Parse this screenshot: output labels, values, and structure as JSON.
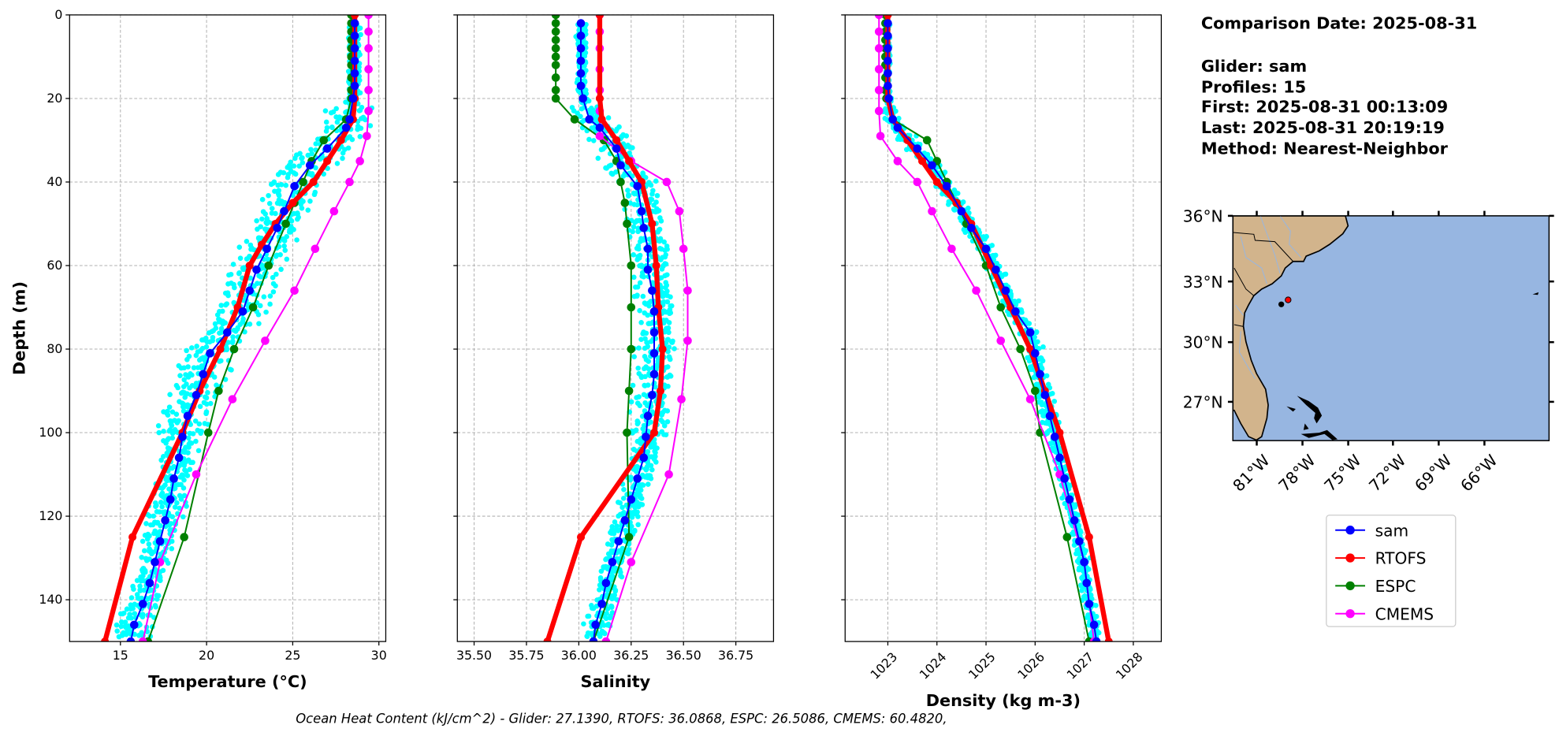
{
  "info": {
    "comparison_date": "Comparison Date: 2025-08-31",
    "glider": "Glider: sam",
    "profiles": "Profiles: 15",
    "first": "First: 2025-08-31 00:13:09",
    "last": "Last: 2025-08-31 20:19:19",
    "method": "Method: Nearest-Neighbor"
  },
  "footer": "Ocean Heat Content (kJ/cm^2) - Glider: 27.1390,  RTOFS: 36.0868,  ESPC: 26.5086,  CMEMS: 60.4820,",
  "colors": {
    "sam": "#0000ff",
    "RTOFS": "#ff0000",
    "ESPC": "#008000",
    "CMEMS": "#ff00ff",
    "glider_obs": "#00ffff",
    "land": "#d2b48c",
    "ocean": "#97b6e1"
  },
  "legend": [
    "sam",
    "RTOFS",
    "ESPC",
    "CMEMS"
  ],
  "chart_data": [
    {
      "type": "line",
      "xlabel": "Temperature (°C)",
      "ylabel": "Depth (m)",
      "xlim": [
        12.05,
        30.4
      ],
      "ylim": [
        150,
        0
      ],
      "xticks": [
        "15",
        "20",
        "25",
        "30"
      ],
      "yticks": [
        "0",
        "20",
        "40",
        "60",
        "80",
        "100",
        "120",
        "140"
      ],
      "grid": true,
      "series": [
        {
          "name": "sam",
          "depth": [
            2,
            5,
            8,
            11,
            14,
            17,
            20,
            25,
            27,
            32,
            36,
            41,
            47,
            51,
            56,
            61,
            66,
            71,
            76,
            81,
            86,
            91,
            96,
            101,
            106,
            111,
            116,
            121,
            126,
            131,
            136,
            141,
            146,
            150
          ],
          "values": [
            28.6,
            28.6,
            28.6,
            28.6,
            28.6,
            28.6,
            28.5,
            28.3,
            28.1,
            27.0,
            26.0,
            25.1,
            24.5,
            24.1,
            23.5,
            22.9,
            22.5,
            22.1,
            21.2,
            20.2,
            19.8,
            19.4,
            18.9,
            18.6,
            18.4,
            18.1,
            17.9,
            17.6,
            17.3,
            17.0,
            16.7,
            16.3,
            15.8,
            15.6
          ]
        },
        {
          "name": "RTOFS",
          "depth": [
            0,
            20,
            25,
            30,
            35,
            40,
            45,
            50,
            55,
            60,
            70,
            80,
            90,
            100,
            125,
            150
          ],
          "values": [
            28.6,
            28.6,
            28.5,
            27.8,
            27.0,
            26.2,
            25.0,
            24.0,
            23.2,
            22.5,
            21.8,
            20.8,
            19.6,
            18.6,
            15.7,
            14.1
          ]
        },
        {
          "name": "ESPC",
          "depth": [
            0,
            2,
            4,
            6,
            8,
            10,
            12,
            15,
            18,
            20,
            25,
            30,
            35,
            40,
            45,
            50,
            60,
            70,
            80,
            90,
            100,
            125,
            150
          ],
          "values": [
            28.4,
            28.4,
            28.4,
            28.4,
            28.4,
            28.4,
            28.4,
            28.4,
            28.4,
            28.4,
            28.1,
            26.8,
            26.1,
            25.6,
            25.1,
            24.6,
            23.6,
            22.7,
            21.6,
            20.7,
            20.1,
            18.7,
            16.6
          ]
        },
        {
          "name": "CMEMS",
          "depth": [
            0,
            4,
            8,
            13,
            18,
            23,
            29,
            35,
            40,
            47,
            56,
            66,
            78,
            92,
            110,
            131,
            150
          ],
          "values": [
            29.4,
            29.4,
            29.4,
            29.4,
            29.4,
            29.4,
            29.3,
            28.9,
            28.3,
            27.4,
            26.3,
            25.1,
            23.4,
            21.5,
            19.4,
            17.3,
            16.3
          ]
        }
      ]
    },
    {
      "type": "line",
      "xlabel": "Salinity",
      "xlim": [
        35.42,
        36.93
      ],
      "ylim": [
        150,
        0
      ],
      "xticks": [
        "35.50",
        "35.75",
        "36.00",
        "36.25",
        "36.50",
        "36.75"
      ],
      "grid": true,
      "series": [
        {
          "name": "sam",
          "depth": [
            2,
            5,
            8,
            11,
            14,
            17,
            20,
            25,
            27,
            32,
            36,
            41,
            47,
            51,
            56,
            61,
            66,
            71,
            76,
            81,
            86,
            91,
            96,
            101,
            106,
            111,
            116,
            121,
            126,
            131,
            136,
            141,
            146,
            150
          ],
          "values": [
            36.01,
            36.01,
            36.01,
            36.01,
            36.01,
            36.01,
            36.02,
            36.05,
            36.1,
            36.18,
            36.2,
            36.28,
            36.3,
            36.31,
            36.33,
            36.33,
            36.35,
            36.36,
            36.36,
            36.36,
            36.36,
            36.35,
            36.33,
            36.32,
            36.31,
            36.28,
            36.25,
            36.22,
            36.19,
            36.16,
            36.13,
            36.11,
            36.08,
            36.07
          ]
        },
        {
          "name": "RTOFS",
          "depth": [
            0,
            20,
            25,
            30,
            35,
            40,
            50,
            60,
            70,
            80,
            90,
            100,
            125,
            150
          ],
          "values": [
            36.1,
            36.1,
            36.11,
            36.18,
            36.24,
            36.3,
            36.35,
            36.37,
            36.38,
            36.4,
            36.39,
            36.36,
            36.01,
            35.85
          ]
        },
        {
          "name": "ESPC",
          "depth": [
            0,
            2,
            4,
            6,
            8,
            10,
            12,
            15,
            18,
            20,
            25,
            30,
            35,
            40,
            45,
            50,
            60,
            70,
            80,
            90,
            100,
            125,
            150
          ],
          "values": [
            35.89,
            35.89,
            35.89,
            35.89,
            35.89,
            35.89,
            35.89,
            35.89,
            35.89,
            35.89,
            35.98,
            36.12,
            36.18,
            36.2,
            36.22,
            36.23,
            36.25,
            36.25,
            36.25,
            36.24,
            36.23,
            36.24,
            36.07
          ]
        },
        {
          "name": "CMEMS",
          "depth": [
            0,
            4,
            8,
            13,
            18,
            23,
            29,
            35,
            40,
            47,
            56,
            66,
            78,
            92,
            110,
            131,
            150
          ],
          "values": [
            36.1,
            36.1,
            36.1,
            36.1,
            36.1,
            36.1,
            36.1,
            36.25,
            36.42,
            36.48,
            36.5,
            36.52,
            36.52,
            36.49,
            36.43,
            36.25,
            36.13
          ]
        }
      ]
    },
    {
      "type": "line",
      "xlabel": "Density (kg m-3)",
      "xlim": [
        1022.13,
        1028.57
      ],
      "ylim": [
        150,
        0
      ],
      "xticks": [
        "1023",
        "1024",
        "1025",
        "1026",
        "1027",
        "1028"
      ],
      "grid": true,
      "series": [
        {
          "name": "sam",
          "depth": [
            2,
            5,
            8,
            11,
            14,
            17,
            20,
            25,
            27,
            32,
            36,
            41,
            47,
            51,
            56,
            61,
            66,
            71,
            76,
            81,
            86,
            91,
            96,
            101,
            106,
            111,
            116,
            121,
            126,
            131,
            136,
            141,
            146,
            150
          ],
          "values": [
            1023.0,
            1023.0,
            1023.0,
            1023.0,
            1023.0,
            1023.0,
            1023.02,
            1023.1,
            1023.2,
            1023.6,
            1023.9,
            1024.2,
            1024.5,
            1024.7,
            1025.0,
            1025.2,
            1025.4,
            1025.6,
            1025.9,
            1026.0,
            1026.1,
            1026.2,
            1026.3,
            1026.4,
            1026.5,
            1026.6,
            1026.7,
            1026.8,
            1026.9,
            1027.0,
            1027.05,
            1027.1,
            1027.2,
            1027.25
          ]
        },
        {
          "name": "RTOFS",
          "depth": [
            0,
            20,
            25,
            30,
            35,
            40,
            45,
            50,
            60,
            70,
            80,
            90,
            100,
            125,
            150
          ],
          "values": [
            1023.0,
            1023.0,
            1023.1,
            1023.4,
            1023.7,
            1024.0,
            1024.4,
            1024.7,
            1025.1,
            1025.5,
            1025.9,
            1026.2,
            1026.5,
            1027.1,
            1027.5
          ]
        },
        {
          "name": "ESPC",
          "depth": [
            0,
            2,
            4,
            6,
            8,
            10,
            12,
            15,
            18,
            20,
            25,
            30,
            35,
            40,
            45,
            50,
            60,
            70,
            80,
            90,
            100,
            125,
            150
          ],
          "values": [
            1022.95,
            1022.95,
            1022.95,
            1022.95,
            1022.95,
            1022.95,
            1022.95,
            1022.95,
            1022.95,
            1022.97,
            1023.1,
            1023.8,
            1024.0,
            1024.2,
            1024.4,
            1024.6,
            1025.0,
            1025.3,
            1025.7,
            1026.0,
            1026.1,
            1026.65,
            1027.1
          ]
        },
        {
          "name": "CMEMS",
          "depth": [
            0,
            4,
            8,
            13,
            18,
            23,
            29,
            35,
            40,
            47,
            56,
            66,
            78,
            92,
            110,
            131,
            150
          ],
          "values": [
            1022.82,
            1022.82,
            1022.82,
            1022.82,
            1022.82,
            1022.82,
            1022.85,
            1023.2,
            1023.6,
            1023.9,
            1024.3,
            1024.8,
            1025.3,
            1025.9,
            1026.5,
            1027.0,
            1027.2
          ]
        }
      ]
    }
  ],
  "map": {
    "lat_ticks": [
      "36°N",
      "33°N",
      "30°N",
      "27°N"
    ],
    "lon_ticks": [
      "81°W",
      "78°W",
      "75°W",
      "72°W",
      "69°W",
      "66°W"
    ]
  }
}
